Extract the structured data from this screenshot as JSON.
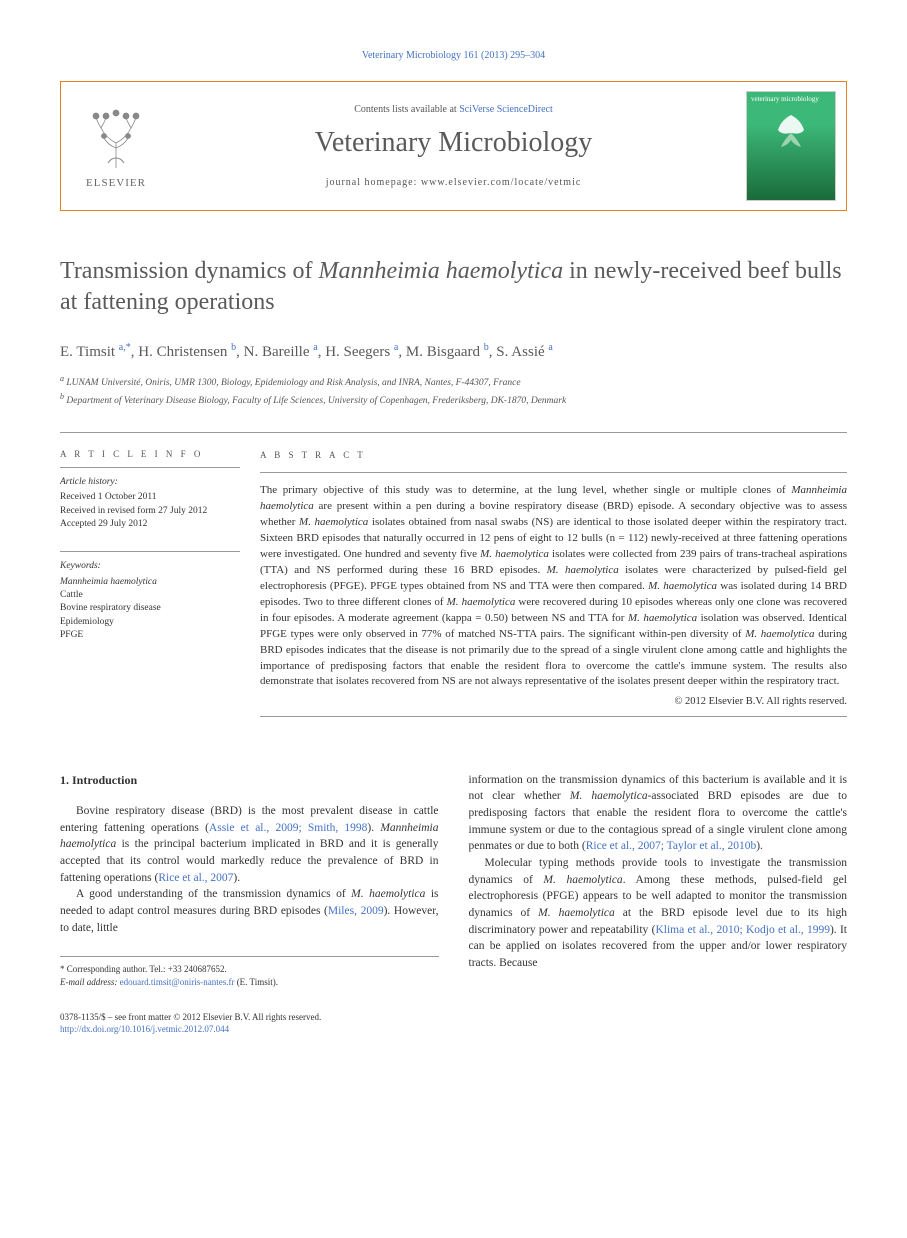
{
  "running_header": "Veterinary Microbiology 161 (2013) 295–304",
  "header": {
    "contents_text": "Contents lists available at ",
    "contents_link": "SciVerse ScienceDirect",
    "journal_name": "Veterinary Microbiology",
    "homepage_label": "journal homepage: ",
    "homepage_url": "www.elsevier.com/locate/vetmic",
    "elsevier_label": "ELSEVIER",
    "cover_title": "veterinary microbiology"
  },
  "title_pre": "Transmission dynamics of ",
  "title_em": "Mannheimia haemolytica",
  "title_post": " in newly-received beef bulls at fattening operations",
  "authors_html": "E. Timsit <sup>a,*</sup>, H. Christensen <sup>b</sup>, N. Bareille <sup>a</sup>, H. Seegers <sup>a</sup>, M. Bisgaard <sup>b</sup>, S. Assié <sup>a</sup>",
  "affiliations": [
    "a LUNAM Université, Oniris, UMR 1300, Biology, Epidemiology and Risk Analysis, and INRA, Nantes, F-44307, France",
    "b Department of Veterinary Disease Biology, Faculty of Life Sciences, University of Copenhagen, Frederiksberg, DK-1870, Denmark"
  ],
  "info": {
    "heading": "A R T I C L E  I N F O",
    "history_label": "Article history:",
    "history": [
      "Received 1 October 2011",
      "Received in revised form 27 July 2012",
      "Accepted 29 July 2012"
    ],
    "keywords_label": "Keywords:",
    "keywords": [
      "Mannheimia haemolytica",
      "Cattle",
      "Bovine respiratory disease",
      "Epidemiology",
      "PFGE"
    ]
  },
  "abstract": {
    "heading": "A B S T R A C T",
    "text": "The primary objective of this study was to determine, at the lung level, whether single or multiple clones of Mannheimia haemolytica are present within a pen during a bovine respiratory disease (BRD) episode. A secondary objective was to assess whether M. haemolytica isolates obtained from nasal swabs (NS) are identical to those isolated deeper within the respiratory tract. Sixteen BRD episodes that naturally occurred in 12 pens of eight to 12 bulls (n = 112) newly-received at three fattening operations were investigated. One hundred and seventy five M. haemolytica isolates were collected from 239 pairs of trans-tracheal aspirations (TTA) and NS performed during these 16 BRD episodes. M. haemolytica isolates were characterized by pulsed-field gel electrophoresis (PFGE). PFGE types obtained from NS and TTA were then compared. M. haemolytica was isolated during 14 BRD episodes. Two to three different clones of M. haemolytica were recovered during 10 episodes whereas only one clone was recovered in four episodes. A moderate agreement (kappa = 0.50) between NS and TTA for M. haemolytica isolation was observed. Identical PFGE types were only observed in 77% of matched NS-TTA pairs. The significant within-pen diversity of M. haemolytica during BRD episodes indicates that the disease is not primarily due to the spread of a single virulent clone among cattle and highlights the importance of predisposing factors that enable the resident flora to overcome the cattle's immune system. The results also demonstrate that isolates recovered from NS are not always representative of the isolates present deeper within the respiratory tract.",
    "copyright": "© 2012 Elsevier B.V. All rights reserved."
  },
  "body": {
    "section_num": "1.",
    "section_title": "Introduction",
    "col1": [
      "Bovine respiratory disease (BRD) is the most prevalent disease in cattle entering fattening operations (Assie et al., 2009; Smith, 1998). Mannheimia haemolytica is the principal bacterium implicated in BRD and it is generally accepted that its control would markedly reduce the prevalence of BRD in fattening operations (Rice et al., 2007).",
      "A good understanding of the transmission dynamics of M. haemolytica is needed to adapt control measures during BRD episodes (Miles, 2009). However, to date, little"
    ],
    "col2": [
      "information on the transmission dynamics of this bacterium is available and it is not clear whether M. haemolytica-associated BRD episodes are due to predisposing factors that enable the resident flora to overcome the cattle's immune system or due to the contagious spread of a single virulent clone among penmates or due to both (Rice et al., 2007; Taylor et al., 2010b).",
      "Molecular typing methods provide tools to investigate the transmission dynamics of M. haemolytica. Among these methods, pulsed-field gel electrophoresis (PFGE) appears to be well adapted to monitor the transmission dynamics of M. haemolytica at the BRD episode level due to its high discriminatory power and repeatability (Klima et al., 2010; Kodjo et al., 1999). It can be applied on isolates recovered from the upper and/or lower respiratory tracts. Because"
    ]
  },
  "footnote": {
    "corr_label": "* Corresponding author. Tel.: +33 240687652.",
    "email_label": "E-mail address: ",
    "email": "edouard.timsit@oniris-nantes.fr",
    "email_suffix": " (E. Timsit)."
  },
  "footer": {
    "issn_line": "0378-1135/$ – see front matter © 2012 Elsevier B.V. All rights reserved.",
    "doi": "http://dx.doi.org/10.1016/j.vetmic.2012.07.044"
  }
}
